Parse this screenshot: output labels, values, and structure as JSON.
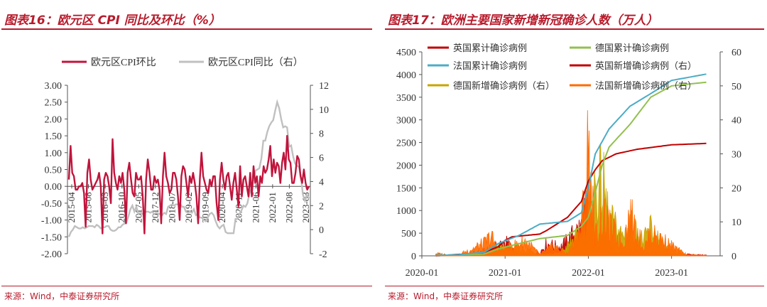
{
  "left": {
    "title": "图表16：欧元区 CPI 同比及环比（%）",
    "source": "来源：Wind，中泰证券研究所"
  },
  "right": {
    "title": "图表17：欧洲主要国家新增新冠确诊人数（万人）",
    "source": "来源：Wind，中泰证券研究所"
  },
  "chart_data": [
    {
      "type": "line",
      "title": "",
      "x_ticks": [
        "2015-04",
        "2015-08",
        "2016-03",
        "2016-10",
        "2017-05",
        "2017-12",
        "2018-07",
        "2019-02",
        "2019-09",
        "2020-04",
        "2020-11",
        "2021-06",
        "2022-01",
        "2022-08",
        "2023-03"
      ],
      "ylim_left": [
        -2.0,
        3.0
      ],
      "yticks_left": [
        "3.00",
        "2.50",
        "2.00",
        "1.50",
        "1.00",
        "0.50",
        "0.00",
        "-0.50",
        "-1.00",
        "-1.50",
        "-2.00"
      ],
      "ylim_right": [
        -2,
        12
      ],
      "yticks_right": [
        "12",
        "10",
        "8",
        "6",
        "4",
        "2",
        "0",
        "-2"
      ],
      "legend": "top-left",
      "colors": {
        "mom": "#c0143c",
        "yoy": "#c0c0c0"
      },
      "series": [
        {
          "name": "欧元区CPI环比",
          "axis": "left",
          "values": [
            0.2,
            1.2,
            0.4,
            0.3,
            -0.1,
            -0.1,
            0.0,
            0.0,
            0.1,
            -0.2,
            -1.2,
            0.4,
            0.8,
            0.2,
            -0.1,
            0.0,
            0.1,
            0.2,
            0.4,
            0.0,
            -1.4,
            0.2,
            0.4,
            0.3,
            0.0,
            -0.5,
            1.4,
            0.4,
            0.1,
            -0.1,
            0.3,
            0.1,
            0.4,
            -0.1,
            -1.1,
            0.4,
            0.7,
            0.2,
            -0.2,
            -0.3,
            0.4,
            0.2,
            0.2,
            0.3,
            -0.3,
            -1.4,
            0.2,
            0.8,
            0.4,
            -0.1,
            -0.1,
            0.3,
            0.1,
            0.2,
            -0.1,
            -1.1,
            0.3,
            1.0,
            0.3,
            0.1,
            -0.2,
            -0.1,
            0.4,
            0.4,
            0.2,
            -0.3,
            -1.0,
            0.3,
            0.6,
            0.5,
            0.1,
            -0.3,
            0.3,
            0.1,
            0.4,
            0.1,
            -0.3,
            -1.1,
            0.2,
            1.0,
            0.3,
            0.1,
            -0.1,
            -0.2,
            0.2,
            0.0,
            0.3,
            0.3,
            -0.5,
            -1.0,
            0.2,
            0.7,
            0.2,
            -0.1,
            0.3,
            0.4,
            0.0,
            -0.4,
            0.1,
            0.4,
            -0.1,
            -0.6,
            0.6,
            -0.3,
            0.2,
            0.3,
            0.0,
            -0.3,
            0.4,
            -0.3,
            0.6,
            0.1,
            0.3,
            -0.3,
            0.3,
            0.1,
            0.6,
            0.4,
            0.5,
            0.8,
            1.2,
            0.3,
            0.8,
            0.4,
            0.7,
            0.6,
            0.1,
            0.7,
            1.0,
            0.5,
            1.5,
            0.8,
            0.7,
            0.1,
            0.1,
            0.4,
            0.9,
            0.8,
            0.3,
            0.1,
            0.5,
            0.1,
            -0.1,
            0.0
          ]
        },
        {
          "name": "欧元区CPI同比（右）",
          "axis": "right",
          "values": [
            -0.6,
            -0.2,
            0.0,
            0.3,
            0.2,
            0.1,
            0.1,
            0.2,
            0.1,
            0.2,
            0.3,
            0.3,
            0.3,
            0.2,
            0.4,
            0.3,
            0.1,
            0.2,
            0.2,
            0.3,
            0.3,
            0.0,
            -0.1,
            -0.1,
            0.0,
            0.2,
            0.2,
            0.4,
            0.5,
            0.6,
            1.1,
            1.7,
            2.0,
            1.5,
            1.9,
            1.3,
            1.4,
            1.3,
            1.3,
            1.5,
            1.5,
            1.4,
            1.5,
            1.3,
            1.4,
            1.3,
            1.3,
            1.2,
            1.4,
            1.3,
            1.9,
            2.0,
            2.1,
            2.0,
            2.1,
            2.1,
            2.2,
            1.9,
            1.9,
            1.5,
            1.4,
            1.5,
            1.4,
            1.7,
            1.2,
            1.3,
            1.0,
            1.0,
            0.8,
            0.7,
            1.0,
            1.3,
            1.4,
            1.2,
            0.7,
            0.3,
            0.1,
            0.3,
            0.4,
            -0.2,
            -0.3,
            -0.3,
            -0.3,
            -0.3,
            0.9,
            0.9,
            1.3,
            1.6,
            2.0,
            1.9,
            2.2,
            3.0,
            3.4,
            4.1,
            4.9,
            5.0,
            5.1,
            5.9,
            7.4,
            7.4,
            8.1,
            8.6,
            8.9,
            9.1,
            9.9,
            10.6,
            10.1,
            9.2,
            8.5,
            8.6,
            8.5,
            6.9,
            7.0,
            6.1,
            5.5,
            5.3,
            5.2,
            4.3,
            2.9,
            2.4,
            2.9,
            2.6
          ]
        }
      ]
    },
    {
      "type": "line",
      "title": "",
      "x_ticks": [
        "2020-01",
        "2021-01",
        "2022-01",
        "2023-01"
      ],
      "ylim_left": [
        0,
        4500
      ],
      "yticks_left": [
        "4500",
        "4000",
        "3500",
        "3000",
        "2500",
        "2000",
        "1500",
        "1000",
        "500",
        "0"
      ],
      "ylim_right": [
        0,
        60
      ],
      "yticks_right": [
        "60",
        "50",
        "40",
        "30",
        "20",
        "10",
        "0"
      ],
      "legend": "top",
      "colors": {
        "uk_cum": "#c00000",
        "de_cum": "#92c04f",
        "fr_cum": "#4bacc6",
        "uk_new": "#c00000",
        "de_new": "#c9a400",
        "fr_new": "#ff6a00"
      },
      "series": [
        {
          "name": "英国累计确诊病例",
          "axis": "left",
          "x": [
            "2020-03",
            "2020-06",
            "2020-09",
            "2020-10",
            "2020-12",
            "2021-01",
            "2021-02",
            "2021-06",
            "2021-07",
            "2021-10",
            "2021-12",
            "2022-01",
            "2022-02",
            "2022-03",
            "2022-05",
            "2022-08",
            "2023-01",
            "2023-06"
          ],
          "values": [
            0,
            30,
            40,
            80,
            200,
            340,
            420,
            480,
            560,
            850,
            1200,
            1650,
            1900,
            2100,
            2250,
            2350,
            2450,
            2480
          ]
        },
        {
          "name": "德国累计确诊病例",
          "axis": "left",
          "x": [
            "2020-03",
            "2020-06",
            "2020-10",
            "2020-12",
            "2021-03",
            "2021-06",
            "2021-10",
            "2021-12",
            "2022-01",
            "2022-02",
            "2022-03",
            "2022-04",
            "2022-07",
            "2022-10",
            "2023-01",
            "2023-06"
          ],
          "values": [
            10,
            20,
            40,
            150,
            270,
            380,
            450,
            650,
            850,
            1400,
            2000,
            2400,
            2900,
            3500,
            3750,
            3830
          ]
        },
        {
          "name": "法国累计确诊病例",
          "axis": "left",
          "x": [
            "2020-03",
            "2020-06",
            "2020-10",
            "2020-12",
            "2021-03",
            "2021-06",
            "2021-10",
            "2021-12",
            "2022-01",
            "2022-02",
            "2022-04",
            "2022-07",
            "2022-10",
            "2023-01",
            "2023-06"
          ],
          "values": [
            10,
            20,
            80,
            270,
            450,
            700,
            760,
            950,
            1500,
            2250,
            2800,
            3300,
            3580,
            3870,
            4010
          ]
        },
        {
          "name": "英国新增确诊病例（右）",
          "axis": "right",
          "x": [
            "2020-03",
            "2020-06",
            "2020-10",
            "2020-11",
            "2020-12",
            "2021-01",
            "2021-03",
            "2021-06",
            "2021-07",
            "2021-09",
            "2021-12",
            "2022-01",
            "2022-02",
            "2022-03",
            "2022-05",
            "2022-07",
            "2022-10",
            "2023-01",
            "2023-06"
          ],
          "values": [
            0.3,
            0.1,
            2.0,
            3.0,
            4.0,
            6.0,
            0.5,
            1.5,
            5.0,
            3.5,
            12,
            20,
            5,
            9,
            1,
            3,
            1.5,
            0.8,
            0.3
          ]
        },
        {
          "name": "德国新增确诊病例（右）",
          "axis": "right",
          "x": [
            "2020-03",
            "2020-06",
            "2020-10",
            "2020-11",
            "2020-12",
            "2021-01",
            "2021-04",
            "2021-06",
            "2021-09",
            "2021-11",
            "2021-12",
            "2022-01",
            "2022-02",
            "2022-03",
            "2022-04",
            "2022-06",
            "2022-07",
            "2022-09",
            "2022-10",
            "2022-12",
            "2023-03"
          ],
          "values": [
            0.5,
            0.1,
            1.0,
            2.5,
            3.5,
            3.0,
            2.8,
            0.5,
            1.0,
            7,
            8,
            15,
            26,
            30,
            15,
            8,
            13,
            6,
            12,
            3,
            1
          ]
        },
        {
          "name": "法国新增确诊病例（右）",
          "axis": "right",
          "x": [
            "2020-03",
            "2020-06",
            "2020-10",
            "2020-11",
            "2020-12",
            "2021-01",
            "2021-04",
            "2021-06",
            "2021-08",
            "2021-10",
            "2021-12",
            "2022-01",
            "2022-02",
            "2022-03",
            "2022-04",
            "2022-06",
            "2022-07",
            "2022-09",
            "2022-10",
            "2022-12",
            "2023-03",
            "2023-06"
          ],
          "values": [
            1,
            0.1,
            5,
            8,
            2,
            3,
            6,
            0.5,
            4,
            0.8,
            12,
            44,
            8,
            16,
            12,
            5,
            17,
            3,
            9,
            6,
            0.5,
            0.2
          ]
        }
      ]
    }
  ]
}
